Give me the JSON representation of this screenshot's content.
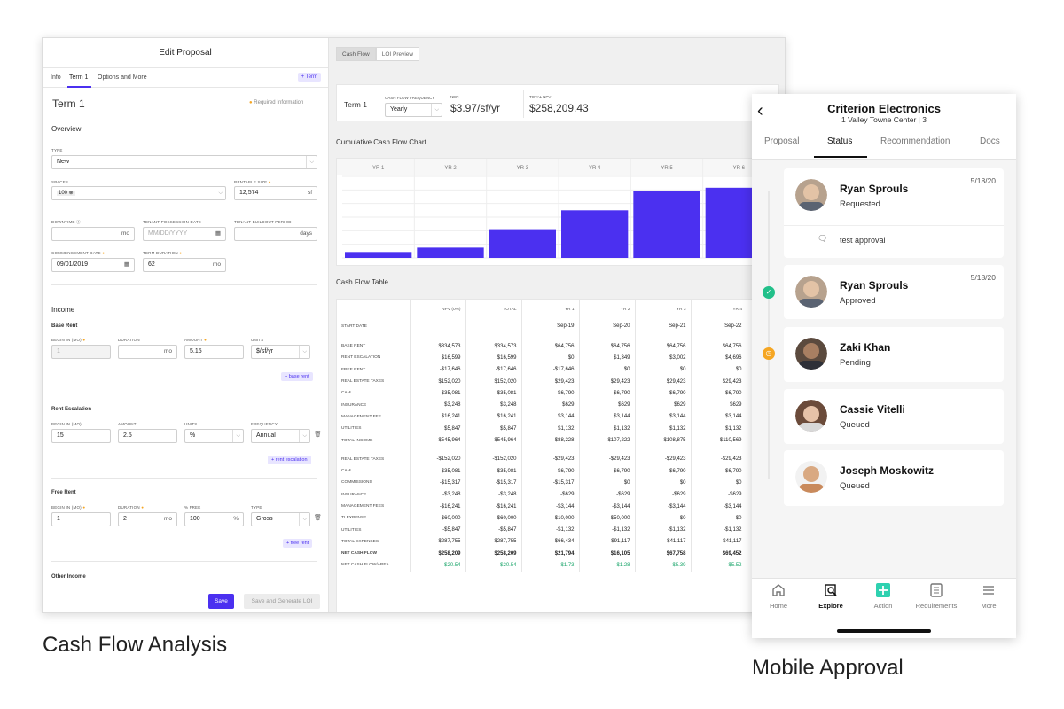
{
  "captions": {
    "left": "Cash Flow Analysis",
    "right": "Mobile Approval"
  },
  "edit": {
    "title": "Edit Proposal",
    "tabs": [
      "Info",
      "Term 1",
      "Options and More"
    ],
    "add_term": "+ Term",
    "term_title": "Term 1",
    "required_note": "Required Information",
    "overview_title": "Overview",
    "type_label": "TYPE",
    "type_value": "New",
    "spaces_label": "SPACES",
    "spaces_value": "100",
    "rentable_label": "RENTABLE SIZE",
    "rentable_value": "12,574",
    "rentable_unit": "sf",
    "downtime_label": "DOWNTIME",
    "downtime_unit": "mo",
    "possession_label": "TENANT POSSESSION DATE",
    "possession_placeholder": "MM/DD/YYYY",
    "buildout_label": "TENANT BUILDOUT PERIOD",
    "buildout_unit": "days",
    "commencement_label": "COMMENCEMENT DATE",
    "commencement_value": "09/01/2019",
    "duration_label": "TERM DURATION",
    "duration_value": "62",
    "duration_unit": "mo",
    "income_title": "Income",
    "base_rent": {
      "title": "Base Rent",
      "begin_label": "BEGIN IN (MO)",
      "begin_value": "1",
      "duration_label": "DURATION",
      "duration_unit": "mo",
      "amount_label": "AMOUNT",
      "amount_value": "5.15",
      "units_label": "UNITS",
      "units_value": "$/sf/yr",
      "add_label": "+ base rent"
    },
    "escalation": {
      "title": "Rent Escalation",
      "begin_label": "BEGIN IN (MO)",
      "begin_value": "15",
      "amount_label": "AMOUNT",
      "amount_value": "2.5",
      "units_label": "UNITS",
      "units_value": "%",
      "frequency_label": "FREQUENCY",
      "frequency_value": "Annual",
      "add_label": "+ rent escalation"
    },
    "free_rent": {
      "title": "Free Rent",
      "begin_label": "BEGIN IN (MO)",
      "begin_value": "1",
      "duration_label": "DURATION",
      "duration_value": "2",
      "duration_unit": "mo",
      "free_label": "% FREE",
      "free_value": "100",
      "free_unit": "%",
      "type_label": "TYPE",
      "type_value": "Gross",
      "add_label": "+ free rent"
    },
    "other_income_title": "Other Income",
    "save_label": "Save",
    "save_loi_label": "Save and Generate LOI"
  },
  "analysis": {
    "tabs": [
      "Cash Flow",
      "LOI Preview"
    ],
    "term_label": "Term 1",
    "freq_label": "CASH FLOW FREQUENCY",
    "freq_value": "Yearly",
    "ner_label": "NER",
    "ner_value": "$3.97/sf/yr",
    "npv_label": "TOTAL NPV",
    "npv_value": "$258,209.43",
    "chart_title": "Cumulative Cash Flow Chart",
    "table_title": "Cash Flow Table"
  },
  "chart_data": {
    "type": "bar",
    "title": "Cumulative Cash Flow Chart",
    "categories": [
      "YR 1",
      "YR 2",
      "YR 3",
      "YR 4",
      "YR 5",
      "YR 6"
    ],
    "values": [
      21794,
      37899,
      105657,
      175109,
      244561,
      258209
    ],
    "ylim": [
      0,
      300000
    ],
    "grid": true,
    "color": "#4b30f0"
  },
  "cf_table": {
    "columns": [
      "NPV (0%)",
      "TOTAL",
      "YR 1",
      "YR 2",
      "YR 3",
      "YR 4"
    ],
    "start_date_label": "START DATE",
    "start_dates": [
      "",
      "",
      "Sep-19",
      "Sep-20",
      "Sep-21",
      "Sep-22"
    ],
    "income_rows": [
      {
        "label": "BASE RENT",
        "v": [
          "$334,573",
          "$334,573",
          "$64,756",
          "$64,756",
          "$64,756",
          "$64,756"
        ]
      },
      {
        "label": "RENT ESCALATION",
        "v": [
          "$16,599",
          "$16,599",
          "$0",
          "$1,349",
          "$3,002",
          "$4,696"
        ]
      },
      {
        "label": "FREE RENT",
        "v": [
          "-$17,646",
          "-$17,646",
          "-$17,646",
          "$0",
          "$0",
          "$0"
        ]
      },
      {
        "label": "REAL ESTATE TAXES",
        "v": [
          "$152,020",
          "$152,020",
          "$29,423",
          "$29,423",
          "$29,423",
          "$29,423"
        ]
      },
      {
        "label": "CAM",
        "v": [
          "$35,081",
          "$35,081",
          "$6,790",
          "$6,790",
          "$6,790",
          "$6,790"
        ]
      },
      {
        "label": "INSURANCE",
        "v": [
          "$3,248",
          "$3,248",
          "$629",
          "$629",
          "$629",
          "$629"
        ]
      },
      {
        "label": "MANAGEMENT FEE",
        "v": [
          "$16,241",
          "$16,241",
          "$3,144",
          "$3,144",
          "$3,144",
          "$3,144"
        ]
      },
      {
        "label": "UTILITIES",
        "v": [
          "$5,847",
          "$5,847",
          "$1,132",
          "$1,132",
          "$1,132",
          "$1,132"
        ]
      },
      {
        "label": "TOTAL INCOME",
        "v": [
          "$545,964",
          "$545,964",
          "$88,228",
          "$107,222",
          "$108,875",
          "$110,569"
        ]
      }
    ],
    "expense_rows": [
      {
        "label": "REAL ESTATE TAXES",
        "v": [
          "-$152,020",
          "-$152,020",
          "-$29,423",
          "-$29,423",
          "-$29,423",
          "-$29,423"
        ]
      },
      {
        "label": "CAM",
        "v": [
          "-$35,081",
          "-$35,081",
          "-$6,790",
          "-$6,790",
          "-$6,790",
          "-$6,790"
        ]
      },
      {
        "label": "COMMISSIONS",
        "v": [
          "-$15,317",
          "-$15,317",
          "-$15,317",
          "$0",
          "$0",
          "$0"
        ]
      },
      {
        "label": "INSURANCE",
        "v": [
          "-$3,248",
          "-$3,248",
          "-$629",
          "-$629",
          "-$629",
          "-$629"
        ]
      },
      {
        "label": "MANAGEMENT FEES",
        "v": [
          "-$16,241",
          "-$16,241",
          "-$3,144",
          "-$3,144",
          "-$3,144",
          "-$3,144"
        ]
      },
      {
        "label": "TI EXPENSE",
        "v": [
          "-$60,000",
          "-$60,000",
          "-$10,000",
          "-$50,000",
          "$0",
          "$0"
        ]
      },
      {
        "label": "UTILITIES",
        "v": [
          "-$5,847",
          "-$5,847",
          "-$1,132",
          "-$1,132",
          "-$1,132",
          "-$1,132"
        ]
      },
      {
        "label": "TOTAL EXPENSES",
        "v": [
          "-$287,755",
          "-$287,755",
          "-$66,434",
          "-$91,117",
          "-$41,117",
          "-$41,117"
        ]
      },
      {
        "label": "NET CASH FLOW",
        "v": [
          "$258,209",
          "$258,209",
          "$21,794",
          "$16,105",
          "$67,758",
          "$69,452"
        ],
        "bold": true
      },
      {
        "label": "NET CASH FLOW/AREA",
        "v": [
          "$20.54",
          "$20.54",
          "$1.73",
          "$1.28",
          "$5.39",
          "$5.52"
        ],
        "green": true
      }
    ]
  },
  "mobile": {
    "title": "Criterion Electronics",
    "subtitle": "1 Valley Towne Center | 3",
    "tabs": [
      "Proposal",
      "Status",
      "Recommendation",
      "Docs"
    ],
    "approvals": [
      {
        "name": "Ryan Sprouls",
        "status": "Requested",
        "date": "5/18/20",
        "comment": "test approval"
      },
      {
        "name": "Ryan Sprouls",
        "status": "Approved",
        "date": "5/18/20"
      },
      {
        "name": "Zaki Khan",
        "status": "Pending"
      },
      {
        "name": "Cassie Vitelli",
        "status": "Queued"
      },
      {
        "name": "Joseph Moskowitz",
        "status": "Queued"
      }
    ],
    "nav": [
      "Home",
      "Explore",
      "Action",
      "Requirements",
      "More"
    ]
  }
}
